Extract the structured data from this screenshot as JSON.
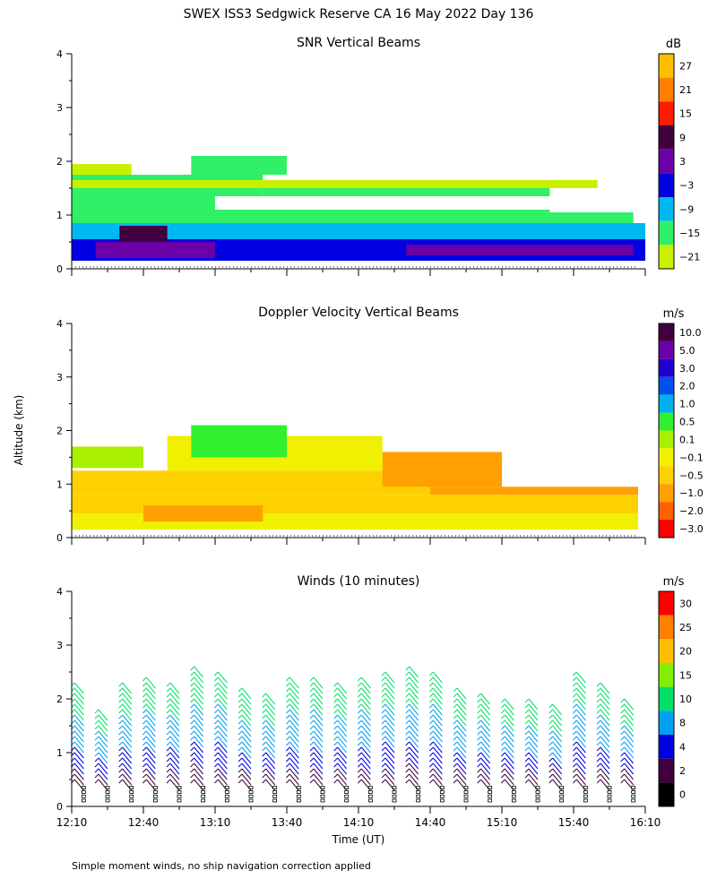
{
  "title": "SWEX ISS3 Sedgwick Reserve CA  16 May 2022 Day 136",
  "footer_note": "Simple moment winds, no ship navigation correction applied",
  "shared_axes": {
    "ylabel": "Altitude (km)",
    "xlabel": "Time (UT)",
    "yticks": [
      0,
      1,
      2,
      3,
      4
    ],
    "xticks": [
      "12:10",
      "12:40",
      "13:10",
      "13:40",
      "14:10",
      "14:40",
      "15:10",
      "15:40",
      "16:10"
    ],
    "xlim": [
      "12:10",
      "16:10"
    ],
    "ylim": [
      0,
      4
    ]
  },
  "chart_data": [
    {
      "type": "heatmap",
      "title": "SNR Vertical Beams",
      "colorbar": {
        "unit": "dB",
        "labels": [
          "27",
          "21",
          "15",
          "9",
          "3",
          "−3",
          "−9",
          "−15",
          "−21"
        ],
        "colors": [
          "#ffbf00",
          "#ff7f00",
          "#ff1a00",
          "#400040",
          "#6a00a8",
          "#0000e0",
          "#00b8f0",
          "#30f068",
          "#c8f000"
        ]
      },
      "regions": [
        {
          "t0": 0,
          "t1": 240,
          "z0": 0.15,
          "z1": 0.55,
          "color": "#0000e0"
        },
        {
          "t0": 0,
          "t1": 240,
          "z0": 0.55,
          "z1": 0.85,
          "color": "#00b8f0"
        },
        {
          "t0": 0,
          "t1": 235,
          "z0": 0.85,
          "z1": 1.05,
          "color": "#30f068"
        },
        {
          "t0": 0,
          "t1": 80,
          "z0": 1.05,
          "z1": 1.75,
          "color": "#30f068"
        },
        {
          "t0": 80,
          "t1": 200,
          "z0": 1.05,
          "z1": 1.5,
          "color": "#30f068"
        },
        {
          "t0": 0,
          "t1": 220,
          "z0": 1.5,
          "z1": 1.65,
          "color": "#c8f000"
        },
        {
          "t0": 0,
          "t1": 25,
          "z0": 1.75,
          "z1": 1.95,
          "color": "#c8f000"
        },
        {
          "t0": 50,
          "t1": 90,
          "z0": 1.75,
          "z1": 2.1,
          "color": "#30f068"
        },
        {
          "t0": 10,
          "t1": 60,
          "z0": 0.2,
          "z1": 0.5,
          "color": "#6a00a8"
        },
        {
          "t0": 140,
          "t1": 235,
          "z0": 0.25,
          "z1": 0.45,
          "color": "#6a00a8"
        },
        {
          "t0": 20,
          "t1": 40,
          "z0": 0.5,
          "z1": 0.8,
          "color": "#400040"
        },
        {
          "t0": 60,
          "t1": 220,
          "z0": 1.1,
          "z1": 1.35,
          "color": "#ffffff"
        }
      ]
    },
    {
      "type": "heatmap",
      "title": "Doppler Velocity Vertical Beams",
      "colorbar": {
        "unit": "m/s",
        "labels": [
          "10.0",
          "5.0",
          "3.0",
          "2.0",
          "1.0",
          "0.5",
          "0.1",
          "−0.1",
          "−0.5",
          "−1.0",
          "−2.0",
          "−3.0"
        ],
        "colors": [
          "#400040",
          "#6a00a8",
          "#2000d0",
          "#0050f0",
          "#00b0f0",
          "#30f030",
          "#a8f000",
          "#f0f000",
          "#ffd000",
          "#ffa000",
          "#ff6000",
          "#ff0000"
        ]
      },
      "regions": [
        {
          "t0": 0,
          "t1": 237,
          "z0": 0.15,
          "z1": 0.45,
          "color": "#f0f000"
        },
        {
          "t0": 0,
          "t1": 237,
          "z0": 0.45,
          "z1": 0.8,
          "color": "#ffd000"
        },
        {
          "t0": 0,
          "t1": 150,
          "z0": 0.8,
          "z1": 1.25,
          "color": "#ffd000"
        },
        {
          "t0": 150,
          "t1": 237,
          "z0": 0.8,
          "z1": 0.95,
          "color": "#ffa000"
        },
        {
          "t0": 130,
          "t1": 180,
          "z0": 0.95,
          "z1": 1.6,
          "color": "#ffa000"
        },
        {
          "t0": 40,
          "t1": 130,
          "z0": 1.25,
          "z1": 1.9,
          "color": "#f0f000"
        },
        {
          "t0": 50,
          "t1": 90,
          "z0": 1.5,
          "z1": 2.1,
          "color": "#30f030"
        },
        {
          "t0": 0,
          "t1": 30,
          "z0": 1.3,
          "z1": 1.7,
          "color": "#a8f000"
        },
        {
          "t0": 30,
          "t1": 80,
          "z0": 0.3,
          "z1": 0.6,
          "color": "#ffa000"
        }
      ]
    },
    {
      "type": "wind-barbs",
      "title": "Winds (10 minutes)",
      "colorbar": {
        "unit": "m/s",
        "labels": [
          "30",
          "25",
          "20",
          "15",
          "10",
          "8",
          "4",
          "2",
          "0"
        ],
        "colors": [
          "#ff0000",
          "#ff7f00",
          "#ffbf00",
          "#80f000",
          "#00e068",
          "#00a0f0",
          "#0000e0",
          "#400040",
          "#000000"
        ]
      },
      "columns": [
        {
          "t": 5,
          "z0": 0.3,
          "z1": 2.1
        },
        {
          "t": 15,
          "z0": 0.3,
          "z1": 1.6
        },
        {
          "t": 25,
          "z0": 0.3,
          "z1": 2.1
        },
        {
          "t": 35,
          "z0": 0.3,
          "z1": 2.2
        },
        {
          "t": 45,
          "z0": 0.3,
          "z1": 2.1
        },
        {
          "t": 55,
          "z0": 0.3,
          "z1": 2.4
        },
        {
          "t": 65,
          "z0": 0.3,
          "z1": 2.3
        },
        {
          "t": 75,
          "z0": 0.3,
          "z1": 2.0
        },
        {
          "t": 85,
          "z0": 0.3,
          "z1": 1.9
        },
        {
          "t": 95,
          "z0": 0.3,
          "z1": 2.2
        },
        {
          "t": 105,
          "z0": 0.3,
          "z1": 2.2
        },
        {
          "t": 115,
          "z0": 0.3,
          "z1": 2.1
        },
        {
          "t": 125,
          "z0": 0.3,
          "z1": 2.2
        },
        {
          "t": 135,
          "z0": 0.3,
          "z1": 2.3
        },
        {
          "t": 145,
          "z0": 0.3,
          "z1": 2.4
        },
        {
          "t": 155,
          "z0": 0.3,
          "z1": 2.3
        },
        {
          "t": 165,
          "z0": 0.3,
          "z1": 2.0
        },
        {
          "t": 175,
          "z0": 0.3,
          "z1": 1.9
        },
        {
          "t": 185,
          "z0": 0.3,
          "z1": 1.8
        },
        {
          "t": 195,
          "z0": 0.3,
          "z1": 1.8
        },
        {
          "t": 205,
          "z0": 0.3,
          "z1": 1.7
        },
        {
          "t": 215,
          "z0": 0.3,
          "z1": 2.3
        },
        {
          "t": 225,
          "z0": 0.3,
          "z1": 2.1
        },
        {
          "t": 235,
          "z0": 0.3,
          "z1": 1.8
        }
      ]
    }
  ]
}
